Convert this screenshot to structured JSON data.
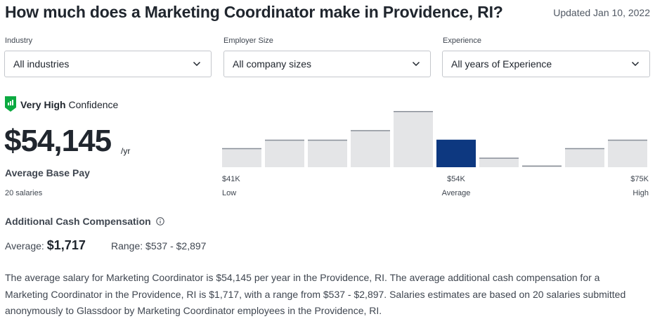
{
  "header": {
    "title": "How much does a Marketing Coordinator make in Providence, RI?",
    "updated": "Updated Jan 10, 2022"
  },
  "filters": {
    "industry": {
      "label": "Industry",
      "value": "All industries"
    },
    "employer_size": {
      "label": "Employer Size",
      "value": "All company sizes"
    },
    "experience": {
      "label": "Experience",
      "value": "All years of Experience"
    }
  },
  "confidence": {
    "level": "Very High",
    "suffix": "Confidence",
    "icon": "bar-chart-shield-icon",
    "color": "#0caa41"
  },
  "pay": {
    "amount": "$54,145",
    "period": "/yr",
    "label": "Average Base Pay",
    "count": "20 salaries"
  },
  "chart_data": {
    "type": "bar",
    "title": "",
    "xlabel": "",
    "ylabel": "",
    "values": [
      0.34,
      0.49,
      0.49,
      0.66,
      1.0,
      0.49,
      0.17,
      0.03,
      0.34,
      0.49
    ],
    "highlight_index": 5,
    "bar_color": "#e4e5e7",
    "highlight_color": "#0d3880",
    "ticks": [
      {
        "value": "$41K",
        "sub": "Low",
        "bar": 0
      },
      {
        "value": "$54K",
        "sub": "Average",
        "bar": 5
      },
      {
        "value": "$75K",
        "sub": "High",
        "bar": 9
      }
    ]
  },
  "additional": {
    "title": "Additional Cash Compensation",
    "avg_label": "Average:",
    "avg_value": "$1,717",
    "range": "Range: $537 - $2,897"
  },
  "description": "The average salary for Marketing Coordinator is $54,145 per year in the Providence, RI. The average additional cash compensation for a Marketing Coordinator in the Providence, RI is $1,717, with a range from $537 - $2,897. Salaries estimates are based on 20 salaries submitted anonymously to Glassdoor by Marketing Coordinator employees in the Providence, RI."
}
